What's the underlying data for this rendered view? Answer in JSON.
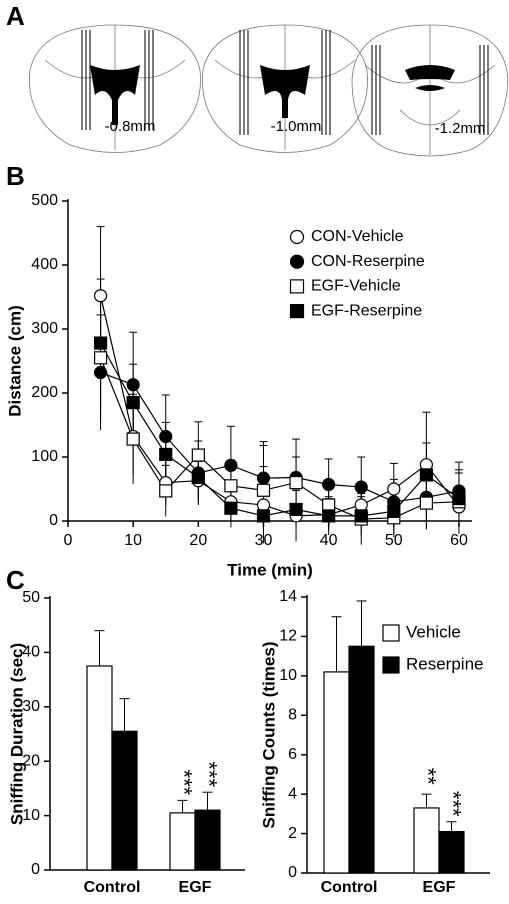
{
  "panel_a": {
    "label": "A",
    "sections": [
      "-0.8mm",
      "-1.0mm",
      "-1.2mm"
    ]
  },
  "chart_data": [
    {
      "type": "line",
      "panel": "B",
      "y_label": "Distance (cm)",
      "x_label": "Time (min)",
      "x": [
        5,
        10,
        15,
        20,
        25,
        30,
        35,
        40,
        45,
        50,
        55,
        60
      ],
      "xlim": [
        0,
        62
      ],
      "xticks": [
        0,
        10,
        20,
        30,
        40,
        50,
        60
      ],
      "ylim": [
        0,
        500
      ],
      "yticks": [
        0,
        100,
        200,
        300,
        400,
        500
      ],
      "series": [
        {
          "name": "CON-Vehicle",
          "marker": "circle",
          "color": "#ffffff",
          "values": [
            352,
            132,
            60,
            63,
            30,
            25,
            8,
            10,
            25,
            50,
            88,
            22
          ],
          "errors": [
            108,
            60,
            35,
            30,
            30,
            60,
            40,
            25,
            30,
            40,
            82,
            30
          ]
        },
        {
          "name": "CON-Reserpine",
          "marker": "circle",
          "color": "#000000",
          "values": [
            232,
            213,
            132,
            75,
            87,
            67,
            68,
            57,
            53,
            30,
            37,
            47
          ],
          "errors": [
            90,
            82,
            65,
            50,
            61,
            57,
            60,
            40,
            47,
            35,
            50,
            45
          ]
        },
        {
          "name": "EGF-Vehicle",
          "marker": "square",
          "color": "#ffffff",
          "values": [
            255,
            128,
            47,
            103,
            55,
            48,
            60,
            25,
            3,
            5,
            28,
            30
          ],
          "errors": [
            100,
            70,
            40,
            52,
            40,
            70,
            40,
            30,
            40,
            30,
            40,
            50
          ]
        },
        {
          "name": "EGF-Reserpine",
          "marker": "square",
          "color": "#000000",
          "values": [
            278,
            185,
            104,
            68,
            20,
            8,
            18,
            8,
            8,
            15,
            72,
            35
          ],
          "errors": [
            100,
            60,
            50,
            40,
            30,
            40,
            30,
            30,
            30,
            35,
            50,
            40
          ]
        }
      ]
    },
    {
      "type": "bar",
      "panel": "C",
      "y_label": "Sniffing Duration (sec)",
      "categories": [
        "Control",
        "EGF"
      ],
      "ylim": [
        0,
        50
      ],
      "yticks": [
        0,
        10,
        20,
        30,
        40,
        50
      ],
      "series": [
        {
          "color": "#ffffff",
          "values": [
            37.5,
            10.5
          ],
          "errors": [
            6.5,
            2.3
          ],
          "significance": [
            null,
            "***"
          ]
        },
        {
          "color": "#000000",
          "values": [
            25.5,
            11
          ],
          "errors": [
            6,
            3.3
          ],
          "significance": [
            null,
            "***"
          ]
        }
      ]
    },
    {
      "type": "bar",
      "y_label": "Sniffing Counts (times)",
      "categories": [
        "Control",
        "EGF"
      ],
      "ylim": [
        0,
        14
      ],
      "yticks": [
        0,
        2,
        4,
        6,
        8,
        10,
        12,
        14
      ],
      "series": [
        {
          "name": "Vehicle",
          "color": "#ffffff",
          "values": [
            10.2,
            3.3
          ],
          "errors": [
            2.8,
            0.7
          ],
          "significance": [
            null,
            "**"
          ]
        },
        {
          "name": "Reserpine",
          "color": "#000000",
          "values": [
            11.5,
            2.1
          ],
          "errors": [
            2.3,
            0.5
          ],
          "significance": [
            null,
            "***"
          ]
        }
      ]
    }
  ]
}
